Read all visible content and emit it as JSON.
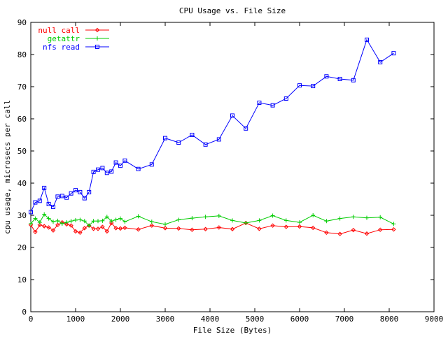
{
  "chart_data": {
    "type": "line",
    "title": "CPU Usage vs. File Size",
    "xlabel": "File Size (Bytes)",
    "ylabel": "cpu usage, microsecs per call",
    "xlim": [
      0,
      9000
    ],
    "ylim": [
      0,
      90
    ],
    "xticks": [
      0,
      1000,
      2000,
      3000,
      4000,
      5000,
      6000,
      7000,
      8000,
      9000
    ],
    "yticks": [
      0,
      10,
      20,
      30,
      40,
      50,
      60,
      70,
      80,
      90
    ],
    "x_tick_labels": [
      "0",
      "1000",
      "2000",
      "3000",
      "4000",
      "5000",
      "6000",
      "7000",
      "8000",
      "9000"
    ],
    "y_tick_labels": [
      "0",
      "10",
      "20",
      "30",
      "40",
      "50",
      "60",
      "70",
      "80",
      "90"
    ],
    "grid": false,
    "legend_position": "top-left",
    "series": [
      {
        "name": "null call",
        "color": "#ff0000",
        "marker": "diamond",
        "x": [
          0,
          100,
          200,
          300,
          400,
          500,
          600,
          700,
          800,
          900,
          1000,
          1100,
          1200,
          1300,
          1400,
          1500,
          1600,
          1700,
          1800,
          1900,
          2000,
          2100,
          2400,
          2700,
          3000,
          3300,
          3600,
          3900,
          4200,
          4500,
          4800,
          5100,
          5400,
          5700,
          6000,
          6300,
          6600,
          6900,
          7200,
          7500,
          7800,
          8100
        ],
        "values": [
          27.0,
          24.8,
          27.0,
          26.6,
          26.2,
          25.3,
          27.0,
          27.8,
          27.2,
          26.8,
          25.0,
          24.6,
          26.0,
          26.8,
          25.8,
          25.8,
          26.4,
          25.0,
          27.6,
          26.0,
          25.9,
          26.1,
          25.6,
          26.8,
          26.0,
          25.9,
          25.5,
          25.7,
          26.2,
          25.7,
          27.6,
          25.8,
          26.8,
          26.4,
          26.5,
          26.1,
          24.6,
          24.2,
          25.4,
          24.3,
          25.5,
          25.6
        ]
      },
      {
        "name": "getattr",
        "color": "#00cc00",
        "marker": "plus",
        "x": [
          0,
          100,
          200,
          300,
          400,
          500,
          600,
          700,
          800,
          900,
          1000,
          1100,
          1200,
          1300,
          1400,
          1500,
          1600,
          1700,
          1800,
          1900,
          2000,
          2100,
          2400,
          2700,
          3000,
          3300,
          3600,
          3900,
          4200,
          4500,
          4800,
          5100,
          5400,
          5700,
          6000,
          6300,
          6600,
          6900,
          7200,
          7500,
          7800,
          8100
        ],
        "values": [
          27.4,
          29.0,
          27.8,
          30.3,
          29.0,
          28.0,
          28.3,
          27.4,
          27.8,
          28.2,
          28.5,
          28.6,
          28.2,
          26.8,
          28.2,
          28.2,
          28.3,
          29.5,
          28.2,
          28.6,
          29.0,
          28.0,
          29.7,
          28.0,
          27.2,
          28.6,
          29.1,
          29.5,
          29.8,
          28.4,
          27.6,
          28.4,
          29.9,
          28.4,
          27.8,
          30.0,
          28.2,
          29.0,
          29.5,
          29.2,
          29.4,
          27.3
        ]
      },
      {
        "name": "nfs read",
        "color": "#0000ff",
        "marker": "square",
        "x": [
          0,
          100,
          200,
          300,
          400,
          500,
          600,
          700,
          800,
          900,
          1000,
          1100,
          1200,
          1300,
          1400,
          1500,
          1600,
          1700,
          1800,
          1900,
          2000,
          2100,
          2400,
          2700,
          3000,
          3300,
          3600,
          3900,
          4200,
          4500,
          4800,
          5100,
          5400,
          5700,
          6000,
          6300,
          6600,
          6900,
          7200,
          7500,
          7800,
          8100
        ],
        "values": [
          31.0,
          34.0,
          34.5,
          38.5,
          33.5,
          32.6,
          35.8,
          36.0,
          35.5,
          36.8,
          37.8,
          37.2,
          35.3,
          37.2,
          43.5,
          44.2,
          44.7,
          43.2,
          43.6,
          46.4,
          45.4,
          47.0,
          44.4,
          45.8,
          54.0,
          52.6,
          55.0,
          52.0,
          53.6,
          61.0,
          57.0,
          65.0,
          64.2,
          66.3,
          70.4,
          70.2,
          73.2,
          72.4,
          72.0,
          84.6,
          77.6,
          80.4
        ]
      }
    ]
  }
}
